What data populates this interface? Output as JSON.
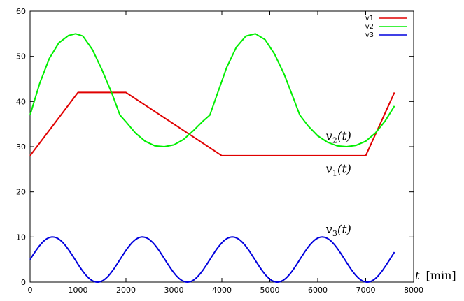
{
  "chart_data": {
    "type": "line",
    "xlabel_var": "t",
    "xlabel_unit": "[min]",
    "xlim": [
      0,
      8000
    ],
    "ylim": [
      0,
      60
    ],
    "xticks": [
      0,
      1000,
      2000,
      3000,
      4000,
      5000,
      6000,
      7000,
      8000
    ],
    "yticks": [
      0,
      10,
      20,
      30,
      40,
      50,
      60
    ],
    "grid": false,
    "legend": "top-right",
    "series": [
      {
        "name": "v1",
        "color": "#e00000",
        "x": [
          0,
          1000,
          2000,
          4000,
          7000,
          7600
        ],
        "y": [
          28,
          42,
          42,
          28,
          28,
          42
        ]
      },
      {
        "name": "v2",
        "color": "#00ee00",
        "x": [
          0,
          200,
          400,
          600,
          800,
          950,
          1100,
          1300,
          1500,
          1700,
          1875,
          2000,
          2200,
          2400,
          2600,
          2800,
          3000,
          3200,
          3400,
          3600,
          3750,
          3900,
          4100,
          4300,
          4500,
          4700,
          4900,
          5100,
          5300,
          5500,
          5625,
          5800,
          6000,
          6200,
          6400,
          6600,
          6800,
          7000,
          7200,
          7400,
          7600
        ],
        "y": [
          37,
          44,
          49.5,
          53,
          54.6,
          55,
          54.5,
          51.5,
          47,
          42,
          37,
          35.5,
          33,
          31.2,
          30.2,
          30,
          30.4,
          31.6,
          33.5,
          35.6,
          37,
          41.5,
          47.5,
          52,
          54.5,
          55,
          53.7,
          50.5,
          46,
          40.5,
          37,
          34.6,
          32.4,
          31,
          30.2,
          30,
          30.3,
          31.2,
          33,
          35.6,
          39
        ]
      },
      {
        "name": "v3",
        "color": "#0000dd",
        "wave": {
          "mean": 5,
          "amplitude": 5,
          "period": 1875,
          "peak_at": 469,
          "x_start": 0,
          "x_end": 7600
        }
      }
    ],
    "annotations": [
      {
        "var": "v",
        "sub": "2",
        "arg": "(t)",
        "x": 6700,
        "y": 31.5
      },
      {
        "var": "v",
        "sub": "1",
        "arg": "(t)",
        "x": 6700,
        "y": 24.2
      },
      {
        "var": "v",
        "sub": "3",
        "arg": "(t)",
        "x": 6700,
        "y": 10.8
      }
    ]
  }
}
